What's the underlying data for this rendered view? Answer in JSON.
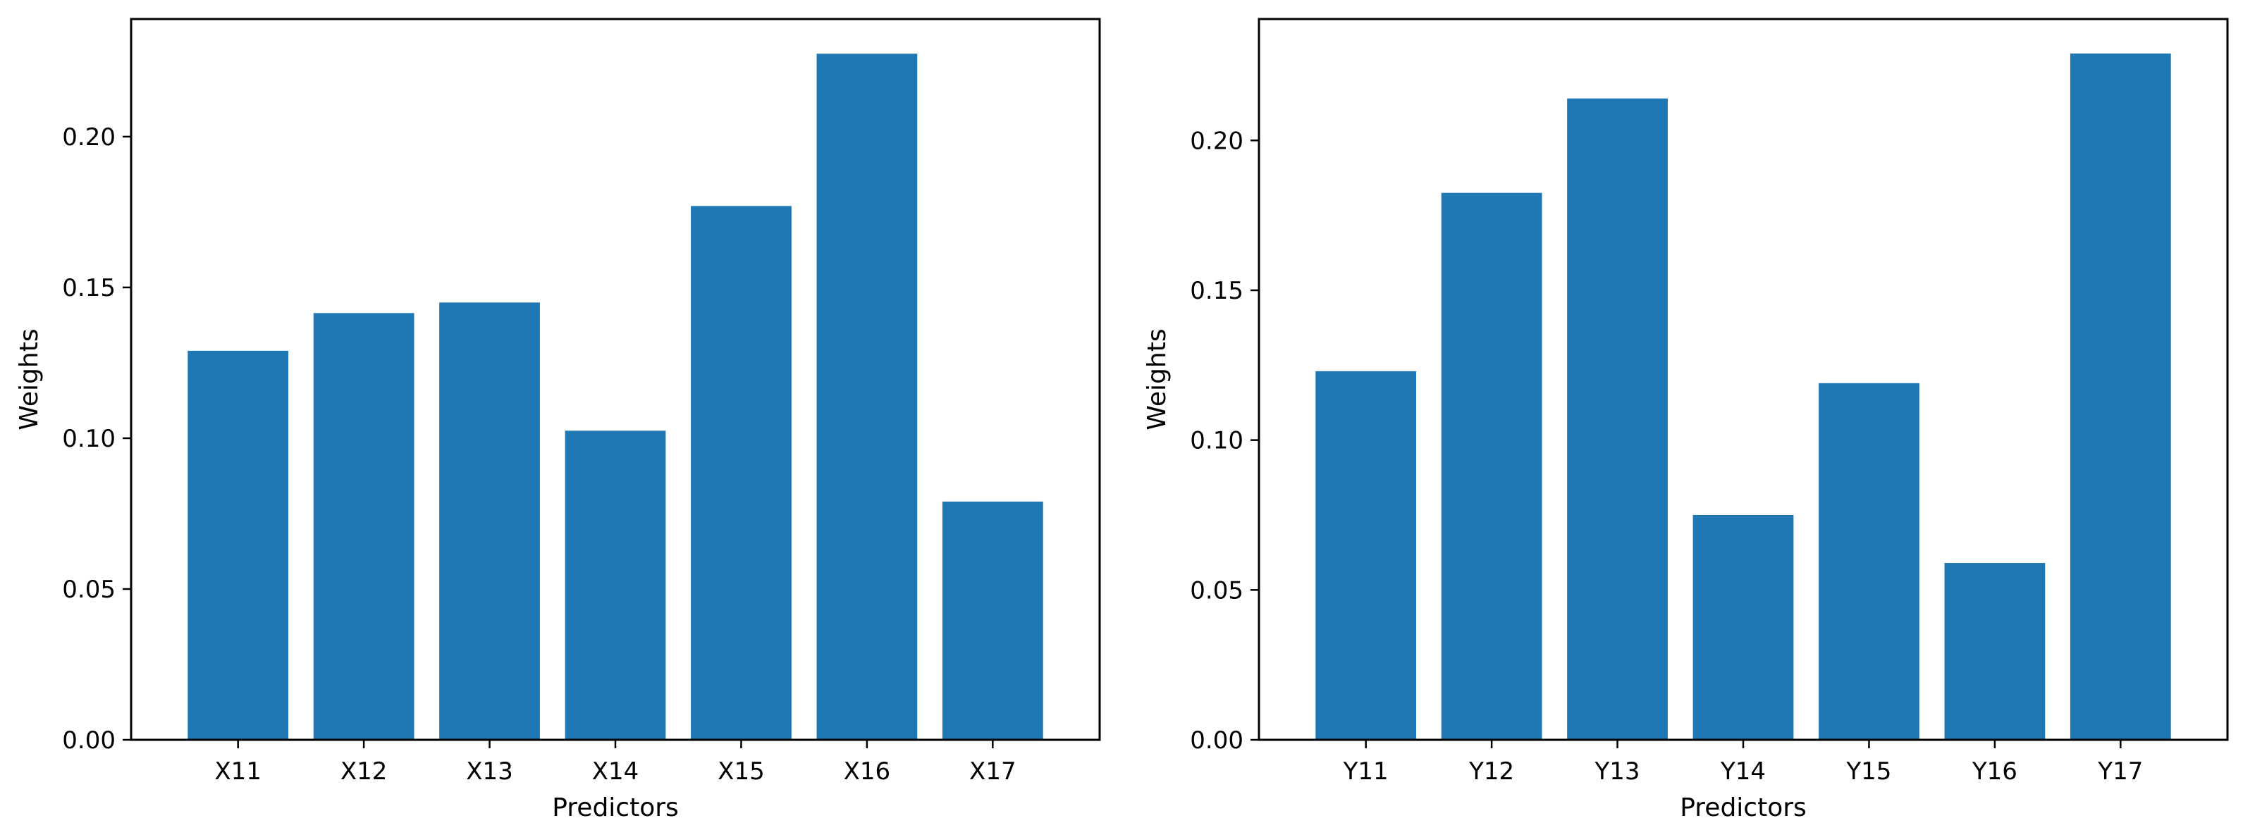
{
  "chart_data": [
    {
      "type": "bar",
      "categories": [
        "X11",
        "X12",
        "X13",
        "X14",
        "X15",
        "X16",
        "X17"
      ],
      "values": [
        0.129,
        0.1415,
        0.145,
        0.1025,
        0.177,
        0.2275,
        0.079
      ],
      "title": "",
      "xlabel": "Predictors",
      "ylabel": "Weights",
      "ylim": [
        0,
        0.239
      ],
      "yticks": [
        0.0,
        0.05,
        0.1,
        0.15,
        0.2
      ],
      "ytick_labels": [
        "0.00",
        "0.05",
        "0.10",
        "0.15",
        "0.20"
      ],
      "grid": false,
      "bar_color": "#1f77b4"
    },
    {
      "type": "bar",
      "categories": [
        "Y11",
        "Y12",
        "Y13",
        "Y14",
        "Y15",
        "Y16",
        "Y17"
      ],
      "values": [
        0.123,
        0.1825,
        0.214,
        0.075,
        0.119,
        0.059,
        0.229
      ],
      "title": "",
      "xlabel": "Predictors",
      "ylabel": "Weights",
      "ylim": [
        0,
        0.2405
      ],
      "yticks": [
        0.0,
        0.05,
        0.1,
        0.15,
        0.2
      ],
      "ytick_labels": [
        "0.00",
        "0.05",
        "0.10",
        "0.15",
        "0.20"
      ],
      "grid": false,
      "bar_color": "#1f77b4"
    }
  ]
}
